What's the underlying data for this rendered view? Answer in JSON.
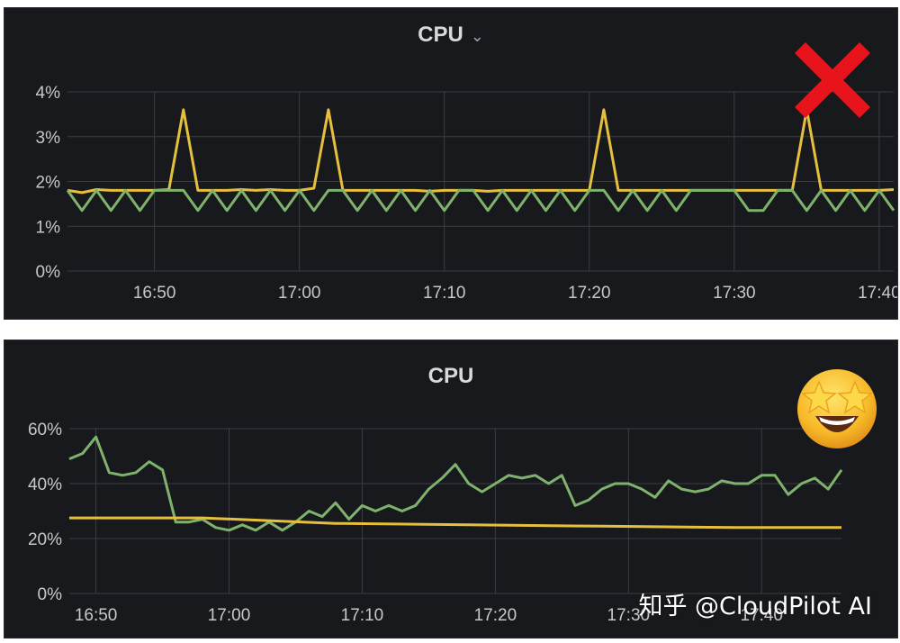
{
  "panels": [
    {
      "title": "CPU",
      "chevron": "⌄",
      "badge_icon": "red-cross-icon",
      "chart_data": {
        "type": "line",
        "title": "CPU",
        "x_ticks": [
          "16:50",
          "17:00",
          "17:10",
          "17:20",
          "17:30",
          "17:40"
        ],
        "x_range": [
          "16:44",
          "17:41"
        ],
        "y_ticks": [
          "0%",
          "1%",
          "2%",
          "3%",
          "4%"
        ],
        "ylim": [
          0,
          4
        ],
        "grid": true,
        "series": [
          {
            "color": "#e5c03c",
            "x": [
              "16:44",
              "16:45",
              "16:46",
              "16:47",
              "16:48",
              "16:49",
              "16:50",
              "16:51",
              "16:52",
              "16:53",
              "16:54",
              "16:55",
              "16:56",
              "16:57",
              "16:58",
              "16:59",
              "17:00",
              "17:01",
              "17:02",
              "17:03",
              "17:04",
              "17:05",
              "17:06",
              "17:07",
              "17:08",
              "17:09",
              "17:10",
              "17:11",
              "17:12",
              "17:13",
              "17:14",
              "17:15",
              "17:16",
              "17:17",
              "17:18",
              "17:19",
              "17:20",
              "17:21",
              "17:22",
              "17:23",
              "17:24",
              "17:25",
              "17:26",
              "17:27",
              "17:28",
              "17:29",
              "17:30",
              "17:31",
              "17:32",
              "17:33",
              "17:34",
              "17:35",
              "17:36",
              "17:37",
              "17:38",
              "17:39",
              "17:40",
              "17:41"
            ],
            "values": [
              1.8,
              1.75,
              1.82,
              1.8,
              1.8,
              1.8,
              1.8,
              1.82,
              3.6,
              1.8,
              1.8,
              1.8,
              1.82,
              1.8,
              1.82,
              1.8,
              1.8,
              1.85,
              3.6,
              1.8,
              1.8,
              1.8,
              1.8,
              1.8,
              1.8,
              1.78,
              1.8,
              1.8,
              1.8,
              1.78,
              1.8,
              1.8,
              1.8,
              1.8,
              1.8,
              1.8,
              1.8,
              3.6,
              1.8,
              1.8,
              1.8,
              1.8,
              1.8,
              1.8,
              1.8,
              1.8,
              1.8,
              1.8,
              1.8,
              1.8,
              1.8,
              3.6,
              1.8,
              1.8,
              1.8,
              1.8,
              1.8,
              1.82
            ]
          },
          {
            "color": "#7eb26d",
            "x": [
              "16:44",
              "16:45",
              "16:46",
              "16:47",
              "16:48",
              "16:49",
              "16:50",
              "16:51",
              "16:52",
              "16:53",
              "16:54",
              "16:55",
              "16:56",
              "16:57",
              "16:58",
              "16:59",
              "17:00",
              "17:01",
              "17:02",
              "17:03",
              "17:04",
              "17:05",
              "17:06",
              "17:07",
              "17:08",
              "17:09",
              "17:10",
              "17:11",
              "17:12",
              "17:13",
              "17:14",
              "17:15",
              "17:16",
              "17:17",
              "17:18",
              "17:19",
              "17:20",
              "17:21",
              "17:22",
              "17:23",
              "17:24",
              "17:25",
              "17:26",
              "17:27",
              "17:28",
              "17:29",
              "17:30",
              "17:31",
              "17:32",
              "17:33",
              "17:34",
              "17:35",
              "17:36",
              "17:37",
              "17:38",
              "17:39",
              "17:40",
              "17:41"
            ],
            "values": [
              1.8,
              1.35,
              1.8,
              1.35,
              1.8,
              1.35,
              1.8,
              1.8,
              1.8,
              1.35,
              1.8,
              1.35,
              1.8,
              1.35,
              1.8,
              1.35,
              1.8,
              1.35,
              1.8,
              1.8,
              1.35,
              1.8,
              1.35,
              1.8,
              1.35,
              1.8,
              1.35,
              1.8,
              1.8,
              1.35,
              1.8,
              1.35,
              1.8,
              1.35,
              1.8,
              1.35,
              1.8,
              1.8,
              1.35,
              1.8,
              1.35,
              1.8,
              1.35,
              1.8,
              1.8,
              1.8,
              1.8,
              1.35,
              1.35,
              1.8,
              1.8,
              1.35,
              1.8,
              1.35,
              1.8,
              1.35,
              1.8,
              1.35
            ]
          }
        ]
      }
    },
    {
      "title": "CPU",
      "badge_icon": "star-struck-emoji-icon",
      "chart_data": {
        "type": "line",
        "title": "CPU",
        "x_ticks": [
          "16:50",
          "17:00",
          "17:10",
          "17:20",
          "17:30",
          "17:40"
        ],
        "x_range": [
          "16:48",
          "17:46"
        ],
        "y_ticks": [
          "0%",
          "20%",
          "40%",
          "60%"
        ],
        "ylim": [
          0,
          60
        ],
        "grid": true,
        "series": [
          {
            "color": "#7eb26d",
            "x": [
              "16:48",
              "16:49",
              "16:50",
              "16:51",
              "16:52",
              "16:53",
              "16:54",
              "16:55",
              "16:56",
              "16:57",
              "16:58",
              "16:59",
              "17:00",
              "17:01",
              "17:02",
              "17:03",
              "17:04",
              "17:05",
              "17:06",
              "17:07",
              "17:08",
              "17:09",
              "17:10",
              "17:11",
              "17:12",
              "17:13",
              "17:14",
              "17:15",
              "17:16",
              "17:17",
              "17:18",
              "17:19",
              "17:20",
              "17:21",
              "17:22",
              "17:23",
              "17:24",
              "17:25",
              "17:26",
              "17:27",
              "17:28",
              "17:29",
              "17:30",
              "17:31",
              "17:32",
              "17:33",
              "17:34",
              "17:35",
              "17:36",
              "17:37",
              "17:38",
              "17:39",
              "17:40",
              "17:41",
              "17:42",
              "17:43",
              "17:44",
              "17:45",
              "17:46"
            ],
            "values": [
              49,
              51,
              57,
              44,
              43,
              44,
              48,
              45,
              26,
              26,
              27,
              24,
              23,
              25,
              23,
              26,
              23,
              26,
              30,
              28,
              33,
              27,
              32,
              30,
              32,
              30,
              32,
              38,
              42,
              47,
              40,
              37,
              40,
              43,
              42,
              43,
              40,
              43,
              32,
              34,
              38,
              40,
              40,
              38,
              35,
              41,
              38,
              37,
              38,
              41,
              40,
              40,
              43,
              43,
              36,
              40,
              42,
              38,
              45
            ]
          },
          {
            "color": "#e5c03c",
            "x": [
              "16:48",
              "16:58",
              "17:08",
              "17:18",
              "17:28",
              "17:38",
              "17:46"
            ],
            "values": [
              27.5,
              27.5,
              25.5,
              25,
              24.5,
              24,
              24
            ]
          }
        ]
      }
    }
  ],
  "watermark": "知乎 @CloudPilot AI"
}
